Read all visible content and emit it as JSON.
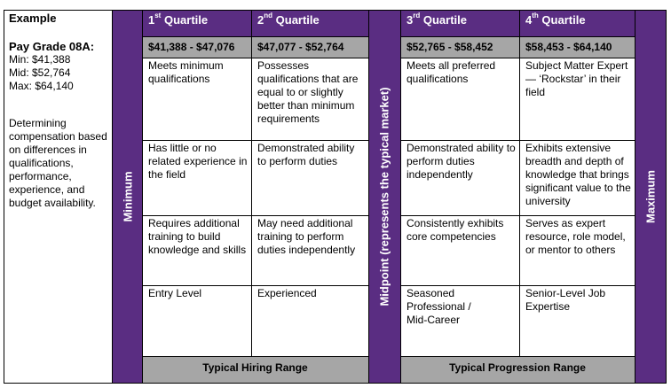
{
  "example": {
    "title": "Example",
    "pay_grade": "Pay Grade 08A:",
    "min": "Min: $41,388",
    "mid": "Mid: $52,764",
    "max": "Max: $64,140",
    "description": "Determining compensation based on differences in qualifications, performance, experience, and budget availability."
  },
  "side_labels": {
    "minimum": "Minimum",
    "midpoint": "Midpoint (represents the typical market)",
    "maximum": "Maximum"
  },
  "quartiles": [
    {
      "num": "1",
      "suffix": "st",
      "label": "Quartile",
      "range": "$41,388 - $47,076",
      "rows": [
        "Meets minimum qualifications",
        "Has little or no related experience in the field",
        "Requires additional training to build knowledge and skills",
        "Entry Level"
      ]
    },
    {
      "num": "2",
      "suffix": "nd",
      "label": "Quartile",
      "range": "$47,077 - $52,764",
      "rows": [
        "Possesses qualifications that are equal to or slightly better than minimum requirements",
        "Demonstrated ability to perform duties",
        "May need additional training to perform duties independently",
        "Experienced"
      ]
    },
    {
      "num": "3",
      "suffix": "rd",
      "label": "Quartile",
      "range": "$52,765 - $58,452",
      "rows": [
        "Meets all preferred qualifications",
        "Demonstrated ability to perform duties independently",
        "Consistently exhibits core competencies",
        "Seasoned Professional / Mid-Career"
      ]
    },
    {
      "num": "4",
      "suffix": "th",
      "label": "Quartile",
      "range": "$58,453 - $64,140",
      "rows": [
        "Subject Matter Expert — ‘Rockstar’ in their field",
        "Exhibits extensive breadth and depth of knowledge that brings significant value to the university",
        "Serves as expert resource, role model, or mentor to others",
        "Senior-Level Job Expertise"
      ]
    }
  ],
  "footers": {
    "hiring": "Typical Hiring Range",
    "progression": "Typical Progression Range"
  },
  "colors": {
    "accent": "#5a2d82",
    "range_band": "#a6a6a6"
  }
}
